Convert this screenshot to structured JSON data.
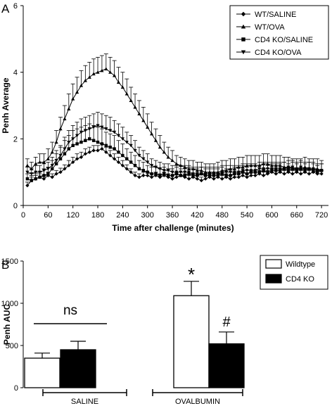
{
  "chart_data": [
    {
      "type": "line",
      "panel_label": "A",
      "xlabel": "Time after challenge (minutes)",
      "ylabel": "Penh Average",
      "xlim": [
        0,
        730
      ],
      "ylim": [
        0,
        6
      ],
      "xticks": [
        "0",
        "60",
        "120",
        "180",
        "240",
        "300",
        "360",
        "420",
        "480",
        "540",
        "600",
        "660",
        "720"
      ],
      "yticks": [
        "0",
        "2",
        "4",
        "6"
      ],
      "legend_position": "top-right",
      "x": [
        10,
        20,
        30,
        40,
        50,
        60,
        70,
        80,
        90,
        100,
        110,
        120,
        130,
        140,
        150,
        160,
        170,
        180,
        190,
        200,
        210,
        220,
        230,
        240,
        250,
        260,
        270,
        280,
        290,
        300,
        310,
        320,
        330,
        340,
        350,
        360,
        370,
        380,
        390,
        400,
        410,
        420,
        430,
        440,
        450,
        460,
        470,
        480,
        490,
        500,
        510,
        520,
        530,
        540,
        550,
        560,
        570,
        580,
        590,
        600,
        610,
        620,
        630,
        640,
        650,
        660,
        670,
        680,
        690,
        700,
        710,
        720
      ],
      "series": [
        {
          "name": "WT/SALINE",
          "marker": "diamond",
          "values": [
            0.6,
            0.75,
            0.8,
            0.85,
            0.8,
            0.9,
            0.85,
            0.95,
            1.0,
            1.1,
            1.2,
            1.3,
            1.4,
            1.45,
            1.55,
            1.6,
            1.65,
            1.65,
            1.7,
            1.6,
            1.5,
            1.4,
            1.3,
            1.2,
            1.1,
            1.0,
            0.9,
            0.85,
            0.9,
            0.9,
            0.85,
            0.9,
            0.85,
            0.9,
            0.85,
            0.8,
            0.85,
            0.9,
            0.85,
            0.8,
            0.85,
            0.8,
            0.75,
            0.8,
            0.85,
            0.8,
            0.85,
            0.8,
            0.85,
            0.8,
            0.85,
            0.85,
            0.9,
            0.85,
            0.9,
            0.9,
            0.95,
            0.9,
            0.95,
            1.0,
            0.95,
            1.0,
            0.95,
            1.0,
            0.95,
            1.0,
            0.95,
            1.0,
            0.95,
            1.0,
            0.95,
            0.95
          ],
          "errors": [
            0.1,
            0.1,
            0.1,
            0.1,
            0.1,
            0.1,
            0.1,
            0.1,
            0.12,
            0.12,
            0.15,
            0.15,
            0.15,
            0.15,
            0.15,
            0.15,
            0.15,
            0.15,
            0.15,
            0.15,
            0.15,
            0.15,
            0.15,
            0.15,
            0.12,
            0.1,
            0.1,
            0.1,
            0.1,
            0.1,
            0.1,
            0.1,
            0.1,
            0.1,
            0.1,
            0.1,
            0.1,
            0.1,
            0.1,
            0.1,
            0.1,
            0.1,
            0.1,
            0.1,
            0.1,
            0.1,
            0.1,
            0.1,
            0.1,
            0.1,
            0.1,
            0.1,
            0.1,
            0.1,
            0.1,
            0.1,
            0.1,
            0.1,
            0.1,
            0.1,
            0.1,
            0.1,
            0.1,
            0.1,
            0.1,
            0.1,
            0.1,
            0.1,
            0.1,
            0.1,
            0.1,
            0.1
          ]
        },
        {
          "name": "WT/OVA",
          "marker": "triangle-up",
          "values": [
            1.2,
            1.1,
            1.25,
            1.3,
            1.3,
            1.4,
            1.6,
            1.9,
            2.3,
            2.6,
            2.9,
            3.2,
            3.4,
            3.6,
            3.75,
            3.85,
            3.95,
            4.0,
            4.05,
            4.1,
            4.0,
            3.9,
            3.7,
            3.55,
            3.35,
            3.15,
            2.95,
            2.75,
            2.55,
            2.35,
            2.15,
            1.95,
            1.75,
            1.6,
            1.45,
            1.35,
            1.25,
            1.2,
            1.15,
            1.1,
            1.1,
            1.05,
            1.05,
            1.0,
            1.0,
            1.0,
            1.0,
            1.05,
            1.05,
            1.1,
            1.1,
            1.15,
            1.15,
            1.2,
            1.2,
            1.2,
            1.2,
            1.25,
            1.25,
            1.2,
            1.2,
            1.2,
            1.15,
            1.15,
            1.1,
            1.1,
            1.1,
            1.15,
            1.1,
            1.1,
            1.1,
            1.05
          ],
          "errors": [
            0.2,
            0.2,
            0.2,
            0.25,
            0.25,
            0.3,
            0.3,
            0.35,
            0.35,
            0.4,
            0.45,
            0.45,
            0.45,
            0.45,
            0.45,
            0.45,
            0.45,
            0.45,
            0.45,
            0.45,
            0.45,
            0.45,
            0.45,
            0.45,
            0.45,
            0.4,
            0.4,
            0.4,
            0.4,
            0.4,
            0.35,
            0.35,
            0.35,
            0.3,
            0.3,
            0.3,
            0.25,
            0.25,
            0.25,
            0.25,
            0.25,
            0.25,
            0.25,
            0.25,
            0.25,
            0.25,
            0.3,
            0.3,
            0.3,
            0.3,
            0.3,
            0.3,
            0.3,
            0.3,
            0.3,
            0.3,
            0.3,
            0.3,
            0.3,
            0.3,
            0.3,
            0.3,
            0.3,
            0.3,
            0.3,
            0.3,
            0.3,
            0.3,
            0.3,
            0.3,
            0.3,
            0.3
          ]
        },
        {
          "name": "CD4 KO/SALINE",
          "marker": "square",
          "values": [
            0.8,
            0.75,
            0.8,
            0.85,
            0.9,
            0.95,
            1.1,
            1.25,
            1.4,
            1.55,
            1.7,
            1.8,
            1.85,
            1.9,
            1.95,
            2.0,
            1.95,
            1.9,
            1.85,
            1.8,
            1.75,
            1.7,
            1.6,
            1.5,
            1.4,
            1.3,
            1.2,
            1.1,
            1.05,
            1.0,
            0.95,
            0.95,
            0.9,
            0.95,
            0.9,
            0.9,
            0.95,
            0.9,
            0.9,
            0.95,
            0.9,
            0.9,
            0.95,
            0.9,
            0.9,
            0.9,
            0.9,
            0.95,
            0.9,
            0.9,
            0.95,
            0.95,
            1.0,
            0.95,
            1.0,
            1.0,
            1.0,
            1.05,
            1.0,
            1.05,
            1.05,
            1.05,
            1.1,
            1.05,
            1.1,
            1.05,
            1.1,
            1.05,
            1.1,
            1.05,
            1.0,
            1.05
          ],
          "errors": [
            0.15,
            0.15,
            0.15,
            0.15,
            0.2,
            0.2,
            0.25,
            0.3,
            0.35,
            0.4,
            0.4,
            0.45,
            0.45,
            0.45,
            0.45,
            0.45,
            0.45,
            0.45,
            0.45,
            0.4,
            0.4,
            0.4,
            0.35,
            0.35,
            0.3,
            0.3,
            0.3,
            0.25,
            0.25,
            0.2,
            0.2,
            0.2,
            0.2,
            0.2,
            0.2,
            0.2,
            0.2,
            0.2,
            0.2,
            0.2,
            0.2,
            0.2,
            0.2,
            0.2,
            0.2,
            0.2,
            0.2,
            0.2,
            0.2,
            0.2,
            0.2,
            0.2,
            0.2,
            0.2,
            0.2,
            0.2,
            0.2,
            0.2,
            0.2,
            0.2,
            0.2,
            0.2,
            0.2,
            0.2,
            0.2,
            0.2,
            0.2,
            0.2,
            0.2,
            0.2,
            0.2,
            0.2
          ]
        },
        {
          "name": "CD4 KO/OVA",
          "marker": "triangle-down",
          "values": [
            1.0,
            0.95,
            1.0,
            1.0,
            1.05,
            1.1,
            1.2,
            1.35,
            1.5,
            1.7,
            1.9,
            2.0,
            2.1,
            2.2,
            2.25,
            2.3,
            2.35,
            2.4,
            2.35,
            2.3,
            2.25,
            2.2,
            2.1,
            2.0,
            1.9,
            1.8,
            1.65,
            1.5,
            1.4,
            1.3,
            1.2,
            1.15,
            1.1,
            1.05,
            1.05,
            1.0,
            1.0,
            1.0,
            1.0,
            1.0,
            0.95,
            0.95,
            0.95,
            0.95,
            0.95,
            0.95,
            0.95,
            1.0,
            1.0,
            1.0,
            1.0,
            1.0,
            1.05,
            1.05,
            1.05,
            1.05,
            1.1,
            1.1,
            1.1,
            1.1,
            1.1,
            1.1,
            1.1,
            1.15,
            1.15,
            1.1,
            1.15,
            1.1,
            1.1,
            1.1,
            1.05,
            1.05
          ],
          "errors": [
            0.15,
            0.15,
            0.2,
            0.2,
            0.2,
            0.2,
            0.25,
            0.3,
            0.3,
            0.35,
            0.35,
            0.4,
            0.4,
            0.4,
            0.4,
            0.4,
            0.4,
            0.4,
            0.4,
            0.4,
            0.4,
            0.35,
            0.35,
            0.35,
            0.3,
            0.3,
            0.3,
            0.25,
            0.25,
            0.25,
            0.2,
            0.2,
            0.2,
            0.2,
            0.2,
            0.2,
            0.2,
            0.2,
            0.2,
            0.2,
            0.2,
            0.2,
            0.2,
            0.2,
            0.2,
            0.2,
            0.2,
            0.2,
            0.2,
            0.2,
            0.2,
            0.2,
            0.2,
            0.2,
            0.2,
            0.2,
            0.2,
            0.2,
            0.2,
            0.2,
            0.2,
            0.2,
            0.2,
            0.2,
            0.2,
            0.2,
            0.2,
            0.2,
            0.2,
            0.2,
            0.2,
            0.2
          ]
        }
      ]
    },
    {
      "type": "bar",
      "panel_label": "B",
      "ylabel": "Penh AUC",
      "ylim": [
        0,
        1500
      ],
      "yticks": [
        "0",
        "500",
        "1000",
        "1500"
      ],
      "categories": [
        "SALINE",
        "OVALBUMIN"
      ],
      "legend_position": "top-right",
      "series": [
        {
          "name": "Wildtype",
          "fill": "#ffffff",
          "values": [
            350,
            1090
          ],
          "errors": [
            60,
            170
          ]
        },
        {
          "name": "CD4 KO",
          "fill": "#000000",
          "values": [
            450,
            520
          ],
          "errors": [
            100,
            140
          ]
        }
      ],
      "annotations": {
        "saline_comparison": "ns",
        "ova_wildtype": "*",
        "ova_cd4ko": "#"
      }
    }
  ]
}
